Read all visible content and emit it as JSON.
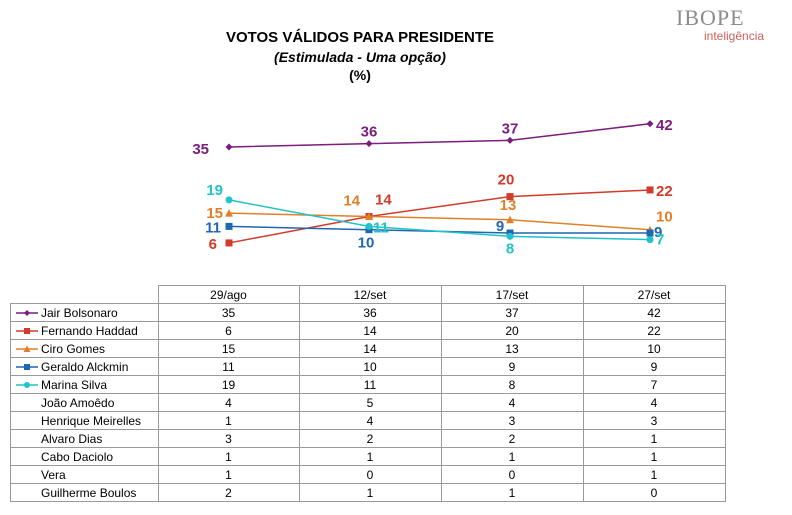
{
  "header": {
    "title": "VOTOS VÁLIDOS PARA PRESIDENTE",
    "subtitle": "(Estimulada - Uma opção)",
    "unit": "(%)"
  },
  "logo": {
    "brand": "IBOPE",
    "sub": "inteligência"
  },
  "chart_data": {
    "type": "line",
    "categories": [
      "29/ago",
      "12/set",
      "17/set",
      "27/set"
    ],
    "ylim": [
      0,
      45
    ],
    "grid": false,
    "legend": "table-below",
    "series": [
      {
        "name": "Jair Bolsonaro",
        "values": [
          35,
          36,
          37,
          42
        ],
        "color": "#7b1c7e",
        "marker": "diamond",
        "plotted": true
      },
      {
        "name": "Fernando Haddad",
        "values": [
          6,
          14,
          20,
          22
        ],
        "color": "#d23a2a",
        "marker": "square",
        "plotted": true
      },
      {
        "name": "Ciro Gomes",
        "values": [
          15,
          14,
          13,
          10
        ],
        "color": "#e07f2a",
        "marker": "triangle",
        "plotted": true
      },
      {
        "name": "Geraldo Alckmin",
        "values": [
          11,
          10,
          9,
          9
        ],
        "color": "#1f67b0",
        "marker": "square",
        "plotted": true
      },
      {
        "name": "Marina Silva",
        "values": [
          19,
          11,
          8,
          7
        ],
        "color": "#1fc3c8",
        "marker": "circle",
        "plotted": true
      },
      {
        "name": "João Amoêdo",
        "values": [
          4,
          5,
          4,
          4
        ],
        "plotted": false
      },
      {
        "name": "Henrique Meirelles",
        "values": [
          1,
          4,
          3,
          3
        ],
        "plotted": false
      },
      {
        "name": "Alvaro Dias",
        "values": [
          3,
          2,
          2,
          1
        ],
        "plotted": false
      },
      {
        "name": "Cabo Daciolo",
        "values": [
          1,
          1,
          1,
          1
        ],
        "plotted": false
      },
      {
        "name": "Vera",
        "values": [
          1,
          0,
          0,
          1
        ],
        "plotted": false
      },
      {
        "name": "Guilherme Boulos",
        "values": [
          2,
          1,
          1,
          0
        ],
        "plotted": false
      }
    ]
  }
}
